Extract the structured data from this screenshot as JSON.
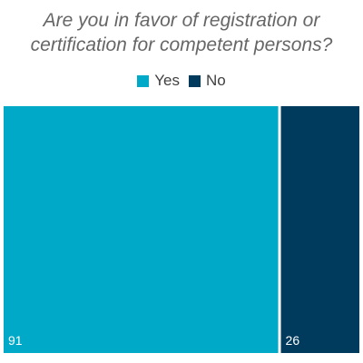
{
  "chart_data": {
    "type": "bar",
    "title": "Are you in favor of registration or certification for competent persons?",
    "title_lines": [
      "Are you in favor of registration or",
      "certification for competent persons?"
    ],
    "categories": [
      "Yes",
      "No"
    ],
    "values": [
      91,
      26
    ],
    "colors": [
      "#00A9C7",
      "#003A5D"
    ],
    "legend": {
      "position": "top-center",
      "entries": [
        "Yes",
        "No"
      ]
    },
    "grid": false,
    "variable_width": true
  }
}
